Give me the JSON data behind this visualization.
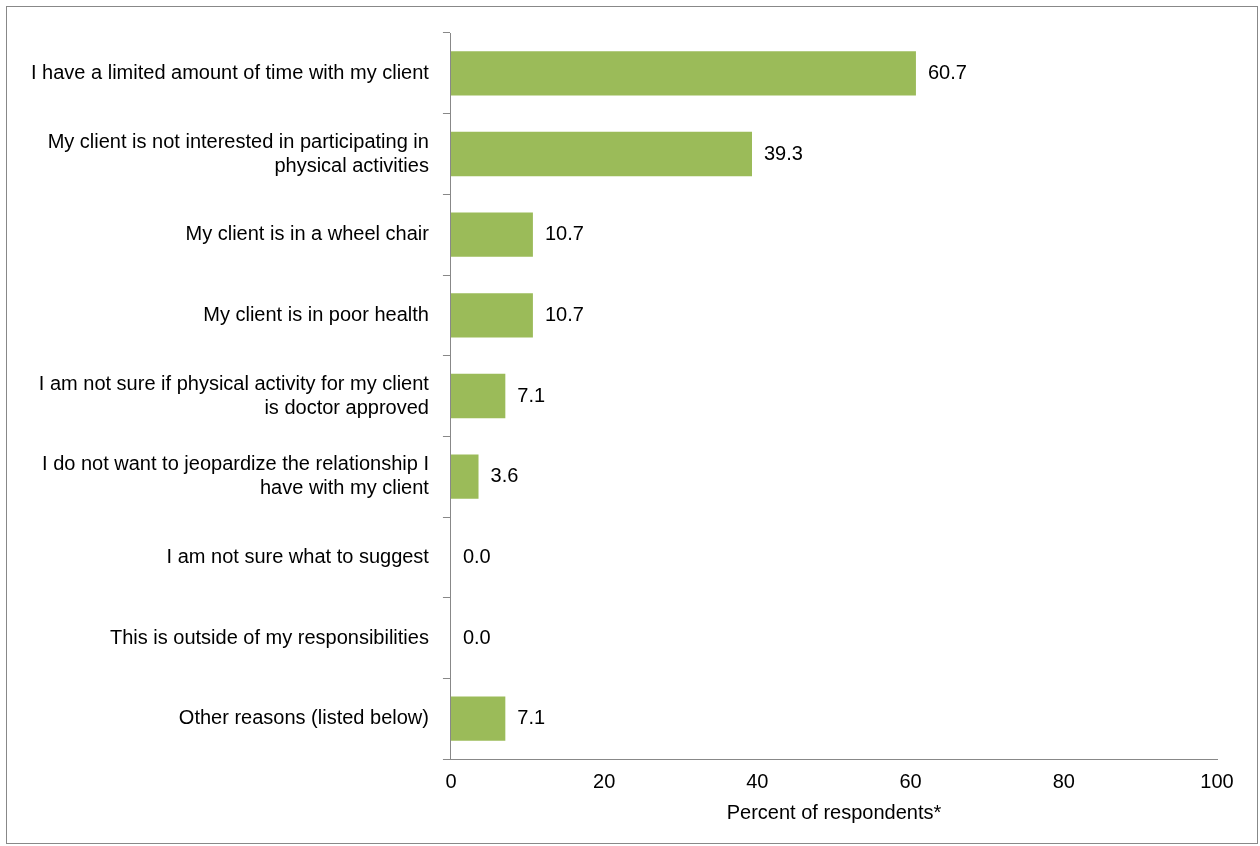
{
  "chart_data": {
    "type": "bar",
    "orientation": "horizontal",
    "categories": [
      "I have a limited amount of time with my client",
      "My client is not interested in participating in physical activities",
      "My client is in a wheel chair",
      "My client is in poor health",
      "I am not sure if physical activity for my client is doctor approved",
      "I do not want to jeopardize the relationship I have with my client",
      "I am not sure what to suggest",
      "This is outside of my responsibilities",
      "Other reasons (listed below)"
    ],
    "values": [
      60.7,
      39.3,
      10.7,
      10.7,
      7.1,
      3.6,
      0.0,
      0.0,
      7.1
    ],
    "value_labels": [
      "60.7",
      "39.3",
      "10.7",
      "10.7",
      "7.1",
      "3.6",
      "0.0",
      "0.0",
      "7.1"
    ],
    "color": "#9bbb59",
    "xlim": [
      0,
      100
    ],
    "xticks": [
      0,
      20,
      40,
      60,
      80,
      100
    ],
    "xlabel": "Percent of respondents*",
    "grid": false,
    "legend": false
  }
}
